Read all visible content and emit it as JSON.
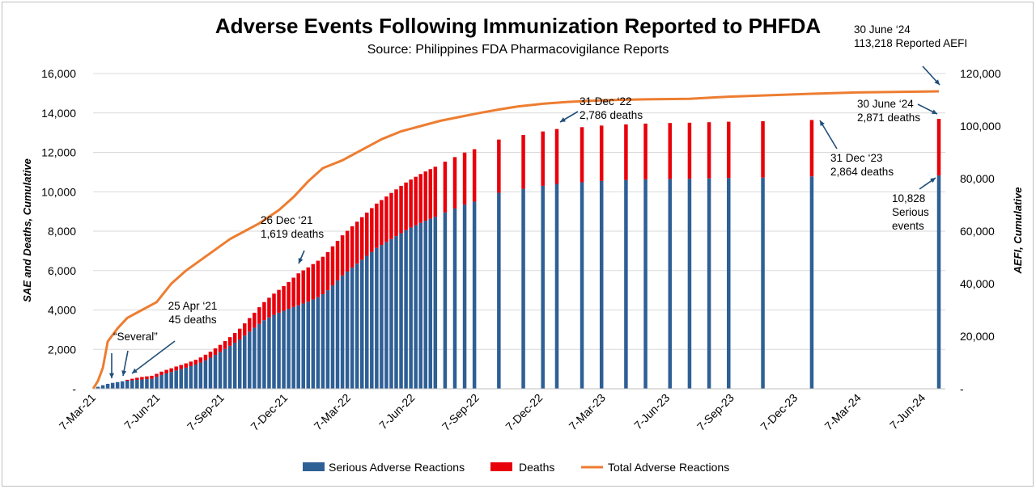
{
  "chart_data": {
    "type": "bar",
    "title": "Adverse Events Following Immunization Reported to PHFDA",
    "subtitle": "Source: Philippines FDA Pharmacovigilance Reports",
    "ylabel_left": "SAE and Deaths, Cumulative",
    "ylabel_right": "AEFI, Cumulative",
    "x_range": [
      "2021-03-07",
      "2024-06-30"
    ],
    "x_ticks": [
      "7-Mar-21",
      "7-Jun-21",
      "7-Sep-21",
      "7-Dec-21",
      "7-Mar-22",
      "7-Jun-22",
      "7-Sep-22",
      "7-Dec-22",
      "7-Mar-23",
      "7-Jun-23",
      "7-Sep-23",
      "7-Dec-23",
      "7-Mar-24",
      "7-Jun-24"
    ],
    "y_left_range": [
      0,
      16000
    ],
    "y_left_ticks": [
      "-",
      "2,000",
      "4,000",
      "6,000",
      "8,000",
      "10,000",
      "12,000",
      "14,000",
      "16,000"
    ],
    "y_right_range": [
      0,
      120000
    ],
    "y_right_ticks": [
      "-",
      "20,000",
      "40,000",
      "60,000",
      "80,000",
      "100,000",
      "120,000"
    ],
    "grid": true,
    "legend_position": "bottom",
    "series": [
      {
        "name": "Serious Adverse Reactions",
        "color": "#2e5f95",
        "kind": "stacked-bar"
      },
      {
        "name": "Deaths",
        "color": "#e8000b",
        "kind": "stacked-bar"
      },
      {
        "name": "Total Adverse Reactions",
        "color": "#ed7d31",
        "kind": "line",
        "axis": "right"
      }
    ],
    "bars": [
      {
        "x": "2021-03-14",
        "serious": 100,
        "deaths": 0
      },
      {
        "x": "2021-03-21",
        "serious": 180,
        "deaths": 0
      },
      {
        "x": "2021-03-28",
        "serious": 250,
        "deaths": 0
      },
      {
        "x": "2021-04-04",
        "serious": 300,
        "deaths": 0
      },
      {
        "x": "2021-04-11",
        "serious": 340,
        "deaths": 0
      },
      {
        "x": "2021-04-18",
        "serious": 380,
        "deaths": 0
      },
      {
        "x": "2021-04-25",
        "serious": 410,
        "deaths": 45
      },
      {
        "x": "2021-05-02",
        "serious": 430,
        "deaths": 80
      },
      {
        "x": "2021-05-09",
        "serious": 450,
        "deaths": 110
      },
      {
        "x": "2021-05-16",
        "serious": 470,
        "deaths": 130
      },
      {
        "x": "2021-05-23",
        "serious": 490,
        "deaths": 140
      },
      {
        "x": "2021-05-30",
        "serious": 510,
        "deaths": 150
      },
      {
        "x": "2021-06-06",
        "serious": 600,
        "deaths": 160
      },
      {
        "x": "2021-06-13",
        "serious": 700,
        "deaths": 170
      },
      {
        "x": "2021-06-20",
        "serious": 780,
        "deaths": 180
      },
      {
        "x": "2021-06-27",
        "serious": 850,
        "deaths": 190
      },
      {
        "x": "2021-07-04",
        "serious": 930,
        "deaths": 200
      },
      {
        "x": "2021-07-11",
        "serious": 1000,
        "deaths": 210
      },
      {
        "x": "2021-07-18",
        "serious": 1070,
        "deaths": 220
      },
      {
        "x": "2021-07-25",
        "serious": 1150,
        "deaths": 230
      },
      {
        "x": "2021-08-01",
        "serious": 1230,
        "deaths": 240
      },
      {
        "x": "2021-08-08",
        "serious": 1330,
        "deaths": 260
      },
      {
        "x": "2021-08-15",
        "serious": 1450,
        "deaths": 280
      },
      {
        "x": "2021-08-22",
        "serious": 1580,
        "deaths": 300
      },
      {
        "x": "2021-08-29",
        "serious": 1720,
        "deaths": 330
      },
      {
        "x": "2021-09-05",
        "serious": 1870,
        "deaths": 360
      },
      {
        "x": "2021-09-12",
        "serious": 2020,
        "deaths": 400
      },
      {
        "x": "2021-09-19",
        "serious": 2180,
        "deaths": 440
      },
      {
        "x": "2021-09-26",
        "serious": 2340,
        "deaths": 490
      },
      {
        "x": "2021-10-03",
        "serious": 2500,
        "deaths": 550
      },
      {
        "x": "2021-10-10",
        "serious": 2700,
        "deaths": 620
      },
      {
        "x": "2021-10-17",
        "serious": 2900,
        "deaths": 690
      },
      {
        "x": "2021-10-24",
        "serious": 3100,
        "deaths": 760
      },
      {
        "x": "2021-10-31",
        "serious": 3300,
        "deaths": 840
      },
      {
        "x": "2021-11-07",
        "serious": 3480,
        "deaths": 920
      },
      {
        "x": "2021-11-14",
        "serious": 3620,
        "deaths": 1000
      },
      {
        "x": "2021-11-21",
        "serious": 3750,
        "deaths": 1080
      },
      {
        "x": "2021-11-28",
        "serious": 3860,
        "deaths": 1160
      },
      {
        "x": "2021-12-05",
        "serious": 3960,
        "deaths": 1250
      },
      {
        "x": "2021-12-12",
        "serious": 4060,
        "deaths": 1360
      },
      {
        "x": "2021-12-19",
        "serious": 4150,
        "deaths": 1490
      },
      {
        "x": "2021-12-26",
        "serious": 4240,
        "deaths": 1619
      },
      {
        "x": "2022-01-02",
        "serious": 4330,
        "deaths": 1680
      },
      {
        "x": "2022-01-09",
        "serious": 4420,
        "deaths": 1740
      },
      {
        "x": "2022-01-16",
        "serious": 4530,
        "deaths": 1800
      },
      {
        "x": "2022-01-23",
        "serious": 4650,
        "deaths": 1850
      },
      {
        "x": "2022-01-30",
        "serious": 4800,
        "deaths": 1900
      },
      {
        "x": "2022-02-06",
        "serious": 5000,
        "deaths": 1940
      },
      {
        "x": "2022-02-13",
        "serious": 5250,
        "deaths": 1980
      },
      {
        "x": "2022-02-20",
        "serious": 5500,
        "deaths": 2010
      },
      {
        "x": "2022-02-27",
        "serious": 5750,
        "deaths": 2040
      },
      {
        "x": "2022-03-06",
        "serious": 5950,
        "deaths": 2070
      },
      {
        "x": "2022-03-13",
        "serious": 6150,
        "deaths": 2100
      },
      {
        "x": "2022-03-20",
        "serious": 6350,
        "deaths": 2130
      },
      {
        "x": "2022-03-27",
        "serious": 6550,
        "deaths": 2160
      },
      {
        "x": "2022-04-03",
        "serious": 6750,
        "deaths": 2190
      },
      {
        "x": "2022-04-10",
        "serious": 6950,
        "deaths": 2220
      },
      {
        "x": "2022-04-17",
        "serious": 7150,
        "deaths": 2250
      },
      {
        "x": "2022-04-24",
        "serious": 7300,
        "deaths": 2280
      },
      {
        "x": "2022-05-01",
        "serious": 7450,
        "deaths": 2310
      },
      {
        "x": "2022-05-08",
        "serious": 7600,
        "deaths": 2340
      },
      {
        "x": "2022-05-15",
        "serious": 7750,
        "deaths": 2370
      },
      {
        "x": "2022-05-22",
        "serious": 7900,
        "deaths": 2400
      },
      {
        "x": "2022-05-29",
        "serious": 8050,
        "deaths": 2420
      },
      {
        "x": "2022-06-05",
        "serious": 8180,
        "deaths": 2440
      },
      {
        "x": "2022-06-12",
        "serious": 8300,
        "deaths": 2460
      },
      {
        "x": "2022-06-19",
        "serious": 8420,
        "deaths": 2480
      },
      {
        "x": "2022-06-26",
        "serious": 8530,
        "deaths": 2500
      },
      {
        "x": "2022-07-03",
        "serious": 8630,
        "deaths": 2520
      },
      {
        "x": "2022-07-10",
        "serious": 8730,
        "deaths": 2540
      },
      {
        "x": "2022-07-24",
        "serious": 8950,
        "deaths": 2580
      },
      {
        "x": "2022-08-07",
        "serious": 9150,
        "deaths": 2610
      },
      {
        "x": "2022-08-21",
        "serious": 9350,
        "deaths": 2640
      },
      {
        "x": "2022-09-04",
        "serious": 9500,
        "deaths": 2660
      },
      {
        "x": "2022-10-09",
        "serious": 9950,
        "deaths": 2700
      },
      {
        "x": "2022-11-13",
        "serious": 10150,
        "deaths": 2730
      },
      {
        "x": "2022-12-11",
        "serious": 10300,
        "deaths": 2760
      },
      {
        "x": "2022-12-31",
        "serious": 10400,
        "deaths": 2786
      },
      {
        "x": "2023-02-05",
        "serious": 10480,
        "deaths": 2800
      },
      {
        "x": "2023-03-05",
        "serious": 10550,
        "deaths": 2810
      },
      {
        "x": "2023-04-09",
        "serious": 10600,
        "deaths": 2820
      },
      {
        "x": "2023-05-07",
        "serious": 10630,
        "deaths": 2830
      },
      {
        "x": "2023-06-11",
        "serious": 10650,
        "deaths": 2840
      },
      {
        "x": "2023-07-09",
        "serious": 10660,
        "deaths": 2845
      },
      {
        "x": "2023-08-06",
        "serious": 10680,
        "deaths": 2850
      },
      {
        "x": "2023-09-03",
        "serious": 10700,
        "deaths": 2855
      },
      {
        "x": "2023-10-22",
        "serious": 10720,
        "deaths": 2860
      },
      {
        "x": "2023-12-31",
        "serious": 10780,
        "deaths": 2864
      },
      {
        "x": "2024-06-30",
        "serious": 10828,
        "deaths": 2871
      }
    ],
    "line": [
      {
        "x": "2021-03-07",
        "y": 0
      },
      {
        "x": "2021-03-14",
        "y": 3000
      },
      {
        "x": "2021-03-21",
        "y": 8000
      },
      {
        "x": "2021-03-28",
        "y": 18000
      },
      {
        "x": "2021-04-11",
        "y": 23000
      },
      {
        "x": "2021-04-25",
        "y": 27000
      },
      {
        "x": "2021-05-16",
        "y": 30000
      },
      {
        "x": "2021-06-06",
        "y": 33000
      },
      {
        "x": "2021-06-27",
        "y": 40000
      },
      {
        "x": "2021-07-18",
        "y": 45000
      },
      {
        "x": "2021-08-08",
        "y": 49000
      },
      {
        "x": "2021-08-29",
        "y": 53000
      },
      {
        "x": "2021-09-19",
        "y": 57000
      },
      {
        "x": "2021-10-10",
        "y": 60000
      },
      {
        "x": "2021-10-31",
        "y": 63000
      },
      {
        "x": "2021-11-28",
        "y": 68000
      },
      {
        "x": "2021-12-19",
        "y": 73000
      },
      {
        "x": "2022-01-09",
        "y": 79000
      },
      {
        "x": "2022-01-30",
        "y": 84000
      },
      {
        "x": "2022-02-27",
        "y": 87000
      },
      {
        "x": "2022-03-27",
        "y": 91000
      },
      {
        "x": "2022-04-24",
        "y": 95000
      },
      {
        "x": "2022-05-22",
        "y": 98000
      },
      {
        "x": "2022-06-19",
        "y": 100000
      },
      {
        "x": "2022-07-17",
        "y": 102000
      },
      {
        "x": "2022-08-14",
        "y": 103500
      },
      {
        "x": "2022-09-11",
        "y": 105000
      },
      {
        "x": "2022-10-09",
        "y": 106300
      },
      {
        "x": "2022-11-06",
        "y": 107500
      },
      {
        "x": "2022-12-11",
        "y": 108500
      },
      {
        "x": "2023-01-15",
        "y": 109200
      },
      {
        "x": "2023-03-05",
        "y": 109800
      },
      {
        "x": "2023-05-07",
        "y": 110200
      },
      {
        "x": "2023-07-09",
        "y": 110400
      },
      {
        "x": "2023-09-03",
        "y": 111200
      },
      {
        "x": "2023-12-31",
        "y": 112300
      },
      {
        "x": "2024-03-03",
        "y": 112800
      },
      {
        "x": "2024-06-30",
        "y": 113218
      }
    ],
    "annotations": [
      {
        "lines": [
          "“Several”"
        ]
      },
      {
        "lines": [
          "25 Apr ‘21",
          "45 deaths"
        ]
      },
      {
        "lines": [
          "26 Dec ‘21",
          "1,619 deaths"
        ]
      },
      {
        "lines": [
          "31 Dec ‘22",
          "2,786 deaths"
        ]
      },
      {
        "lines": [
          "31 Dec ‘23",
          "2,864 deaths"
        ]
      },
      {
        "lines": [
          "30 June ‘24",
          "2,871 deaths"
        ]
      },
      {
        "lines": [
          "10,828",
          "Serious",
          "events"
        ]
      },
      {
        "lines": [
          "30 June ‘24",
          "113,218 Reported AEFI"
        ]
      }
    ]
  }
}
